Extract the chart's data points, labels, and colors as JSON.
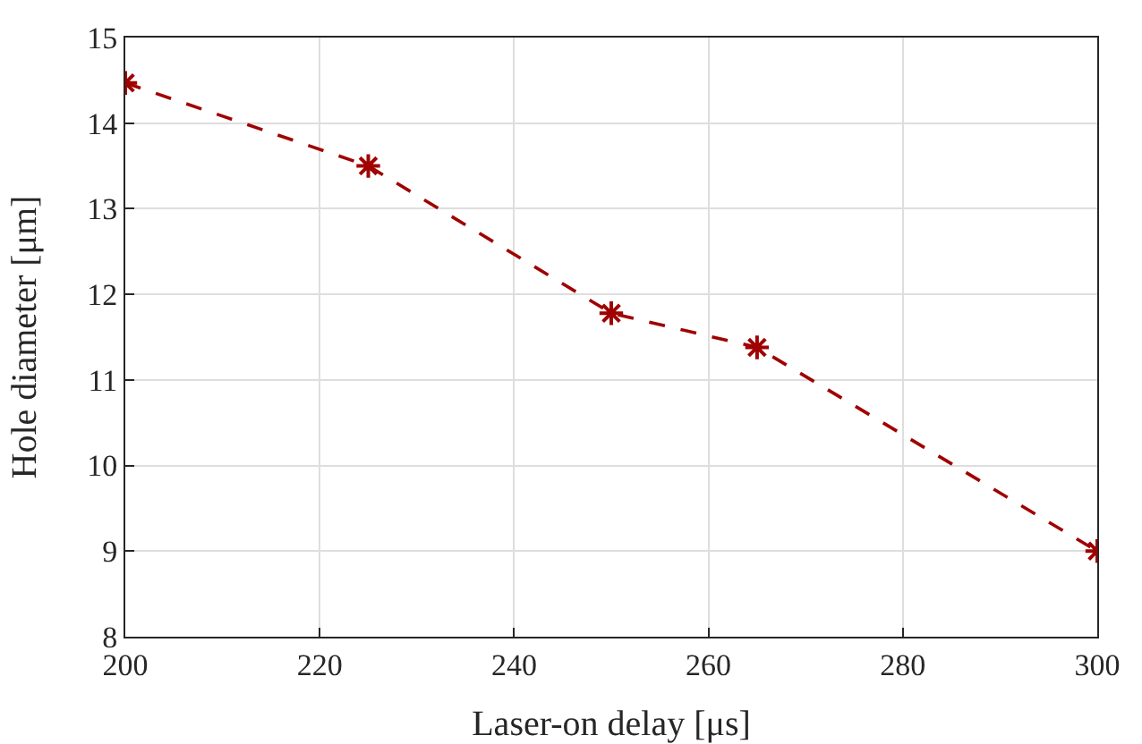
{
  "chart_data": {
    "type": "line",
    "xlabel": "Laser-on delay [μs]",
    "ylabel": "Hole diameter [μm]",
    "x": [
      200,
      225,
      250,
      265,
      300
    ],
    "series": [
      {
        "color": "#a00000",
        "values": [
          14.47,
          13.5,
          11.78,
          11.38,
          9.0
        ]
      }
    ],
    "xlim": [
      200,
      300
    ],
    "xticks": [
      200,
      220,
      240,
      260,
      280,
      300
    ],
    "ylim": [
      8,
      15
    ],
    "yticks": [
      8,
      9,
      10,
      11,
      12,
      13,
      14,
      15
    ],
    "grid": true,
    "marker": "cross",
    "line_style": "dashed"
  }
}
